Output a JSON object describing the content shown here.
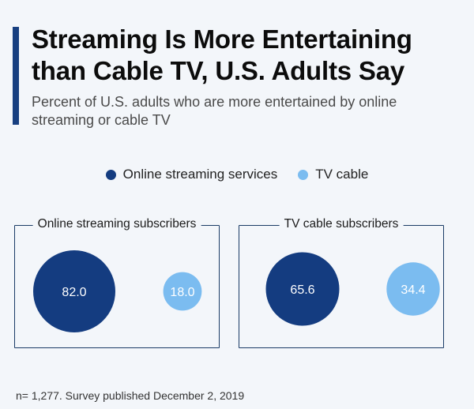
{
  "title": "Streaming Is More Entertaining than Cable TV, U.S. Adults Say",
  "subtitle": "Percent of U.S. adults who are more entertained by online streaming or cable TV",
  "footnote": "n= 1,277. Survey published December 2, 2019",
  "colors": {
    "streaming": "#143c80",
    "cable": "#7bbcf0",
    "accent": "#173f80"
  },
  "chart_data": {
    "type": "bubble",
    "title": "Streaming Is More Entertaining than Cable TV, U.S. Adults Say",
    "subtitle": "Percent of U.S. adults who are more entertained by online streaming or cable TV",
    "series": [
      {
        "name": "Online streaming services",
        "color": "#143c80"
      },
      {
        "name": "TV cable",
        "color": "#7bbcf0"
      }
    ],
    "groups": [
      {
        "label": "Online streaming subscribers",
        "values": [
          82.0,
          18.0
        ]
      },
      {
        "label": "TV cable subscribers",
        "values": [
          65.6,
          34.4
        ]
      }
    ],
    "unit": "percent",
    "legend_position": "top-center"
  }
}
